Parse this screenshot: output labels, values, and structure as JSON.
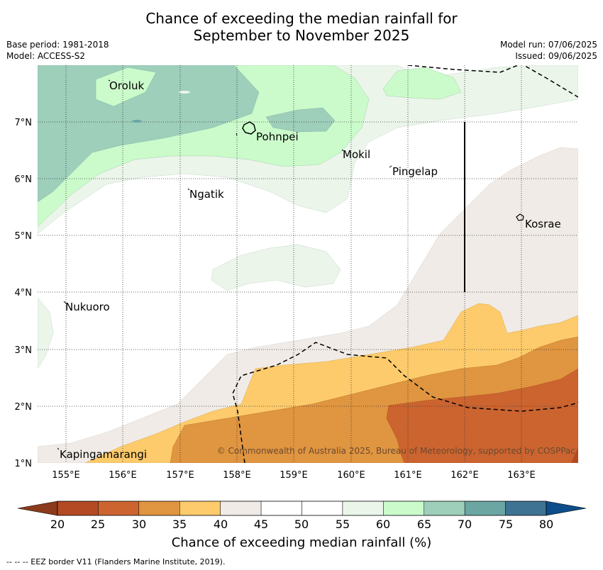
{
  "title_line1": "Chance of exceeding the median rainfall for",
  "title_line2": "September to November 2025",
  "meta": {
    "base_period": "Base period: 1981-2018",
    "model": "Model: ACCESS-S2",
    "model_run": "Model run: 07/06/2025",
    "issued": "Issued: 09/06/2025"
  },
  "map": {
    "lon_ticks": [
      "155°E",
      "156°E",
      "157°E",
      "158°E",
      "159°E",
      "160°E",
      "161°E",
      "162°E",
      "163°E"
    ],
    "lat_ticks": [
      "7°N",
      "6°N",
      "5°N",
      "4°N",
      "3°N",
      "2°N",
      "1°N"
    ],
    "places": [
      "Oroluk",
      "Pohnpei",
      "Mokil",
      "Pingelap",
      "Ngatik",
      "Kosrae",
      "Nukuoro",
      "Kapingamarangi"
    ],
    "copyright": "© Commonwealth of Australia 2025, Bureau of Meteorology, supported by COSPPac"
  },
  "legend": {
    "title": "Chance of exceeding median rainfall (%)",
    "tick_labels": [
      "20",
      "25",
      "30",
      "35",
      "40",
      "45",
      "50",
      "55",
      "60",
      "65",
      "70",
      "75",
      "80"
    ],
    "colors": [
      "#b34a24",
      "#cc6430",
      "#e09540",
      "#fdcb6b",
      "#f0ebe6",
      "#ffffff",
      "#ffffff",
      "#ebf5ea",
      "#cbfbcb",
      "#9dcfbb",
      "#6ba6a3",
      "#3e7394",
      "#134e88"
    ]
  },
  "footnote": "--  --  -- EEZ border V11 (Flanders Marine Institute, 2019)."
}
